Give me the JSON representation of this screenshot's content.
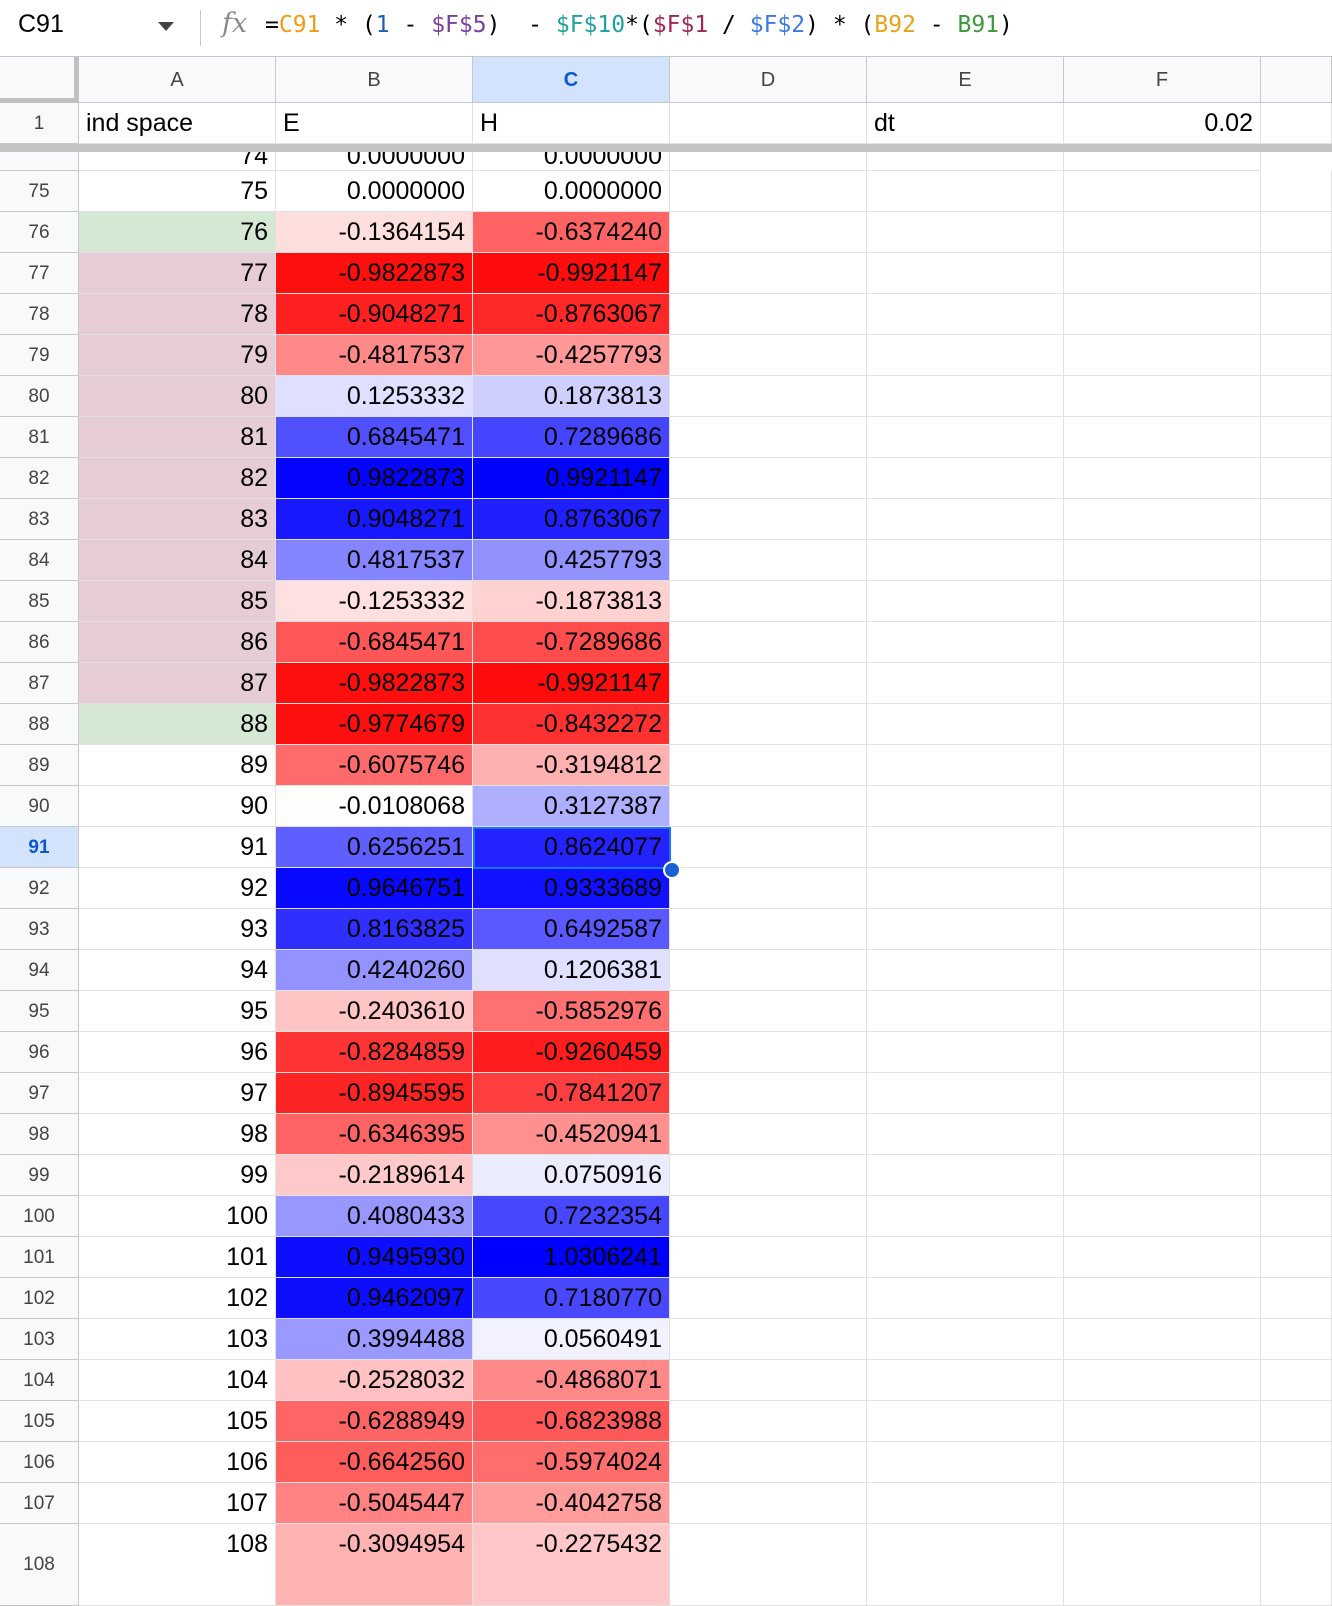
{
  "formula_bar": {
    "cell_ref": "C91",
    "fx_label": "fx",
    "formula_parts": [
      {
        "text": "=",
        "color": "#000000"
      },
      {
        "text": "C91",
        "color": "#f39c12"
      },
      {
        "text": " * (",
        "color": "#000000"
      },
      {
        "text": "1",
        "color": "#1a5fb4"
      },
      {
        "text": " - ",
        "color": "#000000"
      },
      {
        "text": "$F$5",
        "color": "#7b3f9e"
      },
      {
        "text": ")  - ",
        "color": "#000000"
      },
      {
        "text": "$F$10",
        "color": "#1fa0a0"
      },
      {
        "text": "*(",
        "color": "#000000"
      },
      {
        "text": "$F$1",
        "color": "#a0265a"
      },
      {
        "text": " / ",
        "color": "#000000"
      },
      {
        "text": "$F$2",
        "color": "#3b7ae0"
      },
      {
        "text": ") * (",
        "color": "#000000"
      },
      {
        "text": "B92",
        "color": "#e8a317"
      },
      {
        "text": " - ",
        "color": "#000000"
      },
      {
        "text": "B91",
        "color": "#3a9a3a"
      },
      {
        "text": ")",
        "color": "#000000"
      }
    ]
  },
  "columns": [
    "A",
    "B",
    "C",
    "D",
    "E",
    "F"
  ],
  "selected_column": "C",
  "selected_row": "91",
  "header_row": {
    "number": "1",
    "A": "ind space",
    "B": "E",
    "C": "H",
    "D": "",
    "E": "dt",
    "F": "0.02"
  },
  "partial_row": {
    "number": "74",
    "A": "74",
    "B": "0.0000000",
    "C": "0.0000000"
  },
  "colors": {
    "a_green": "#d4e8d4",
    "a_pink": "#e6ccd6",
    "selection": "#1a73e8"
  },
  "rows": [
    {
      "n": "75",
      "a": "75",
      "b": "0.0000000",
      "c": "0.0000000",
      "a_fill": ""
    },
    {
      "n": "76",
      "a": "76",
      "b": "-0.1364154",
      "c": "-0.6374240",
      "a_fill": "green"
    },
    {
      "n": "77",
      "a": "77",
      "b": "-0.9822873",
      "c": "-0.9921147",
      "a_fill": "pink"
    },
    {
      "n": "78",
      "a": "78",
      "b": "-0.9048271",
      "c": "-0.8763067",
      "a_fill": "pink"
    },
    {
      "n": "79",
      "a": "79",
      "b": "-0.4817537",
      "c": "-0.4257793",
      "a_fill": "pink"
    },
    {
      "n": "80",
      "a": "80",
      "b": "0.1253332",
      "c": "0.1873813",
      "a_fill": "pink"
    },
    {
      "n": "81",
      "a": "81",
      "b": "0.6845471",
      "c": "0.7289686",
      "a_fill": "pink"
    },
    {
      "n": "82",
      "a": "82",
      "b": "0.9822873",
      "c": "0.9921147",
      "a_fill": "pink"
    },
    {
      "n": "83",
      "a": "83",
      "b": "0.9048271",
      "c": "0.8763067",
      "a_fill": "pink"
    },
    {
      "n": "84",
      "a": "84",
      "b": "0.4817537",
      "c": "0.4257793",
      "a_fill": "pink"
    },
    {
      "n": "85",
      "a": "85",
      "b": "-0.1253332",
      "c": "-0.1873813",
      "a_fill": "pink"
    },
    {
      "n": "86",
      "a": "86",
      "b": "-0.6845471",
      "c": "-0.7289686",
      "a_fill": "pink"
    },
    {
      "n": "87",
      "a": "87",
      "b": "-0.9822873",
      "c": "-0.9921147",
      "a_fill": "pink"
    },
    {
      "n": "88",
      "a": "88",
      "b": "-0.9774679",
      "c": "-0.8432272",
      "a_fill": "green"
    },
    {
      "n": "89",
      "a": "89",
      "b": "-0.6075746",
      "c": "-0.3194812",
      "a_fill": ""
    },
    {
      "n": "90",
      "a": "90",
      "b": "-0.0108068",
      "c": "0.3127387",
      "a_fill": ""
    },
    {
      "n": "91",
      "a": "91",
      "b": "0.6256251",
      "c": "0.8624077",
      "a_fill": ""
    },
    {
      "n": "92",
      "a": "92",
      "b": "0.9646751",
      "c": "0.9333689",
      "a_fill": ""
    },
    {
      "n": "93",
      "a": "93",
      "b": "0.8163825",
      "c": "0.6492587",
      "a_fill": ""
    },
    {
      "n": "94",
      "a": "94",
      "b": "0.4240260",
      "c": "0.1206381",
      "a_fill": ""
    },
    {
      "n": "95",
      "a": "95",
      "b": "-0.2403610",
      "c": "-0.5852976",
      "a_fill": ""
    },
    {
      "n": "96",
      "a": "96",
      "b": "-0.8284859",
      "c": "-0.9260459",
      "a_fill": ""
    },
    {
      "n": "97",
      "a": "97",
      "b": "-0.8945595",
      "c": "-0.7841207",
      "a_fill": ""
    },
    {
      "n": "98",
      "a": "98",
      "b": "-0.6346395",
      "c": "-0.4520941",
      "a_fill": ""
    },
    {
      "n": "99",
      "a": "99",
      "b": "-0.2189614",
      "c": "0.0750916",
      "a_fill": ""
    },
    {
      "n": "100",
      "a": "100",
      "b": "0.4080433",
      "c": "0.7232354",
      "a_fill": ""
    },
    {
      "n": "101",
      "a": "101",
      "b": "0.9495930",
      "c": "1.0306241",
      "a_fill": ""
    },
    {
      "n": "102",
      "a": "102",
      "b": "0.9462097",
      "c": "0.7180770",
      "a_fill": ""
    },
    {
      "n": "103",
      "a": "103",
      "b": "0.3994488",
      "c": "0.0560491",
      "a_fill": ""
    },
    {
      "n": "104",
      "a": "104",
      "b": "-0.2528032",
      "c": "-0.4868071",
      "a_fill": ""
    },
    {
      "n": "105",
      "a": "105",
      "b": "-0.6288949",
      "c": "-0.6823988",
      "a_fill": ""
    },
    {
      "n": "106",
      "a": "106",
      "b": "-0.6642560",
      "c": "-0.5974024",
      "a_fill": ""
    },
    {
      "n": "107",
      "a": "107",
      "b": "-0.5045447",
      "c": "-0.4042758",
      "a_fill": ""
    },
    {
      "n": "108",
      "a": "108",
      "b": "-0.3094954",
      "c": "-0.2275432",
      "a_fill": ""
    }
  ]
}
